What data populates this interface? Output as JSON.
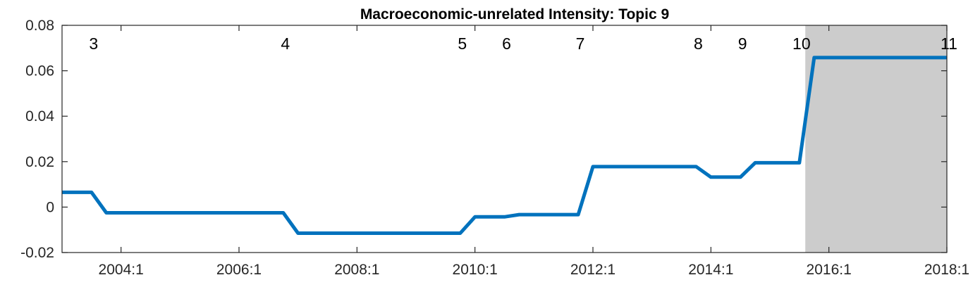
{
  "chart_data": {
    "type": "line",
    "title": "Macroeconomic-unrelated Intensity: Topic 9",
    "xlabel": "",
    "ylabel": "",
    "xlim": [
      2003.0,
      2018.0
    ],
    "ylim": [
      -0.02,
      0.08
    ],
    "x_ticks": [
      2004.0,
      2006.0,
      2008.0,
      2010.0,
      2012.0,
      2014.0,
      2016.0,
      2018.0
    ],
    "x_tick_labels": [
      "2004:1",
      "2006:1",
      "2008:1",
      "2010:1",
      "2012:1",
      "2014:1",
      "2016:1",
      "2018:1"
    ],
    "y_ticks": [
      -0.02,
      0,
      0.02,
      0.04,
      0.06,
      0.08
    ],
    "y_tick_labels": [
      "-0.02",
      "0",
      "0.02",
      "0.04",
      "0.06",
      "0.08"
    ],
    "grid": false,
    "shaded_region": {
      "x_start": 2015.6,
      "x_end": 2018.0,
      "color": "#cccccc"
    },
    "series": [
      {
        "color": "#0072bd",
        "x": [
          2003.0,
          2003.5,
          2003.75,
          2006.75,
          2007.0,
          2009.75,
          2010.0,
          2010.5,
          2010.75,
          2011.75,
          2012.0,
          2013.75,
          2014.0,
          2014.5,
          2014.75,
          2015.5,
          2015.75,
          2018.0
        ],
        "y": [
          0.0065,
          0.0065,
          -0.0025,
          -0.0025,
          -0.0115,
          -0.0115,
          -0.0043,
          -0.0043,
          -0.0033,
          -0.0033,
          0.0178,
          0.0178,
          0.0132,
          0.0132,
          0.0195,
          0.0195,
          0.0658,
          0.0658
        ]
      }
    ],
    "annotations": [
      {
        "label": "3",
        "x": 2003.5
      },
      {
        "label": "4",
        "x": 2006.75
      },
      {
        "label": "5",
        "x": 2009.75
      },
      {
        "label": "6",
        "x": 2010.5
      },
      {
        "label": "7",
        "x": 2011.75
      },
      {
        "label": "8",
        "x": 2013.75
      },
      {
        "label": "9",
        "x": 2014.5
      },
      {
        "label": "10",
        "x": 2015.5
      },
      {
        "label": "11",
        "x": 2018.0
      }
    ]
  }
}
